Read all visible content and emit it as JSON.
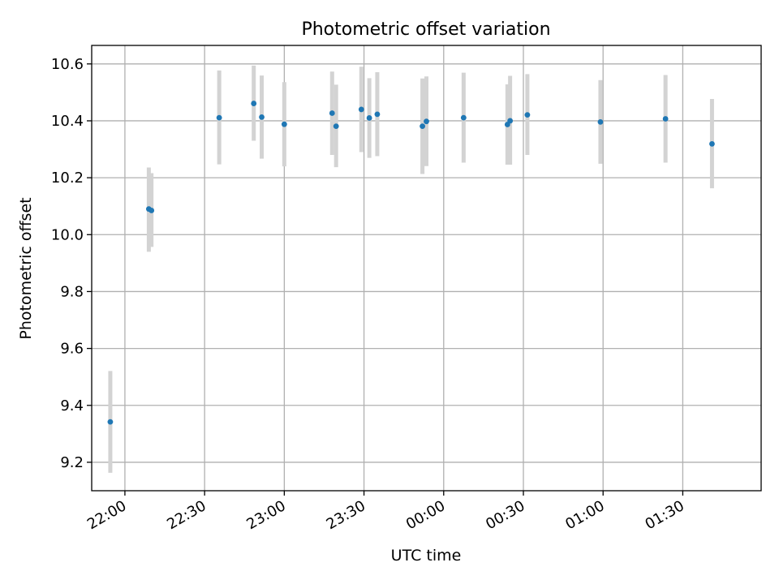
{
  "chart_data": {
    "type": "scatter",
    "title": "Photometric offset variation",
    "xlabel": "UTC time",
    "ylabel": "Photometric offset",
    "x_unit": "UTC time (hh:mm)",
    "xlim": [
      "21:47:30",
      "01:59:30"
    ],
    "ylim": [
      9.1,
      10.665
    ],
    "x_ticks": [
      "22:00",
      "22:30",
      "23:00",
      "23:30",
      "00:00",
      "00:30",
      "01:00",
      "01:30"
    ],
    "y_ticks": [
      9.2,
      9.4,
      9.6,
      9.8,
      10.0,
      10.2,
      10.4,
      10.6
    ],
    "y_tick_labels": [
      "9.2",
      "9.4",
      "9.6",
      "9.8",
      "10.0",
      "10.2",
      "10.4",
      "10.6"
    ],
    "grid": true,
    "legend": null,
    "series": [
      {
        "points": [
          {
            "x": "21:54:30",
            "y": 9.342,
            "err_low": 9.163,
            "err_high": 9.521
          },
          {
            "x": "22:09:00",
            "y": 10.09,
            "err_low": 9.94,
            "err_high": 10.236
          },
          {
            "x": "22:10:00",
            "y": 10.085,
            "err_low": 9.957,
            "err_high": 10.216
          },
          {
            "x": "22:35:30",
            "y": 10.411,
            "err_low": 10.247,
            "err_high": 10.577
          },
          {
            "x": "22:48:30",
            "y": 10.461,
            "err_low": 10.33,
            "err_high": 10.594
          },
          {
            "x": "22:51:30",
            "y": 10.413,
            "err_low": 10.267,
            "err_high": 10.559
          },
          {
            "x": "23:00:00",
            "y": 10.388,
            "err_low": 10.24,
            "err_high": 10.536
          },
          {
            "x": "23:18:00",
            "y": 10.427,
            "err_low": 10.28,
            "err_high": 10.573
          },
          {
            "x": "23:19:30",
            "y": 10.381,
            "err_low": 10.237,
            "err_high": 10.527
          },
          {
            "x": "23:29:00",
            "y": 10.44,
            "err_low": 10.29,
            "err_high": 10.59
          },
          {
            "x": "23:32:00",
            "y": 10.41,
            "err_low": 10.27,
            "err_high": 10.55
          },
          {
            "x": "23:35:00",
            "y": 10.423,
            "err_low": 10.276,
            "err_high": 10.571
          },
          {
            "x": "23:52:00",
            "y": 10.381,
            "err_low": 10.213,
            "err_high": 10.549
          },
          {
            "x": "23:53:30",
            "y": 10.398,
            "err_low": 10.241,
            "err_high": 10.556
          },
          {
            "x": "00:07:30",
            "y": 10.411,
            "err_low": 10.253,
            "err_high": 10.569
          },
          {
            "x": "00:24:00",
            "y": 10.387,
            "err_low": 10.246,
            "err_high": 10.528
          },
          {
            "x": "00:25:00",
            "y": 10.4,
            "err_low": 10.246,
            "err_high": 10.558
          },
          {
            "x": "00:31:30",
            "y": 10.421,
            "err_low": 10.28,
            "err_high": 10.564
          },
          {
            "x": "00:59:00",
            "y": 10.396,
            "err_low": 10.249,
            "err_high": 10.543
          },
          {
            "x": "01:23:30",
            "y": 10.407,
            "err_low": 10.253,
            "err_high": 10.561
          },
          {
            "x": "01:41:00",
            "y": 10.319,
            "err_low": 10.163,
            "err_high": 10.477
          }
        ]
      }
    ],
    "colors": {
      "marker": "#1f77b4",
      "errorbar": "#d3d3d3",
      "grid": "#b0b0b0",
      "axes": "#000000"
    }
  }
}
